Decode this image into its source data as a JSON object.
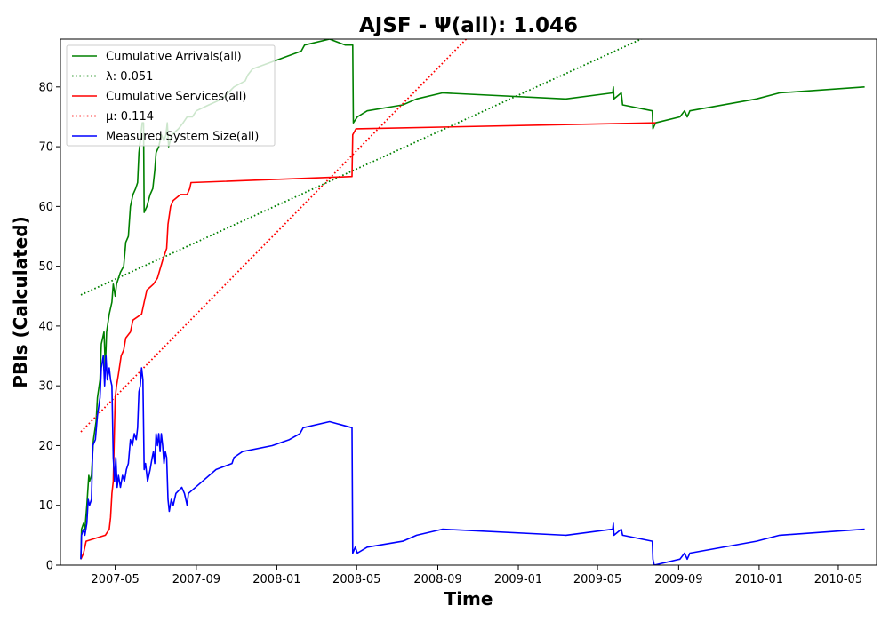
{
  "chart_data": {
    "type": "line",
    "title": "AJSF -  Ψ(all): 1.046",
    "xlabel": "Time",
    "ylabel": "PBIs (Calculated)",
    "x_axis_type": "date",
    "xlim": [
      "2007-02-07",
      "2010-06-28"
    ],
    "ylim": [
      0,
      88
    ],
    "x_ticks": [
      {
        "date": "2007-05-01",
        "label": "2007-05"
      },
      {
        "date": "2007-09-01",
        "label": "2007-09"
      },
      {
        "date": "2008-01-01",
        "label": "2008-01"
      },
      {
        "date": "2008-05-01",
        "label": "2008-05"
      },
      {
        "date": "2008-09-01",
        "label": "2008-09"
      },
      {
        "date": "2009-01-01",
        "label": "2009-01"
      },
      {
        "date": "2009-05-01",
        "label": "2009-05"
      },
      {
        "date": "2009-09-01",
        "label": "2009-09"
      },
      {
        "date": "2010-01-01",
        "label": "2010-01"
      },
      {
        "date": "2010-05-01",
        "label": "2010-05"
      }
    ],
    "y_ticks": [
      0,
      10,
      20,
      30,
      40,
      50,
      60,
      70,
      80
    ],
    "grid": false,
    "legend_position": "top-left",
    "series": [
      {
        "name": "Cumulative Arrivals(all)",
        "style": "solid",
        "color": "#008000",
        "points": [
          [
            "2007-03-10",
            1
          ],
          [
            "2007-03-11",
            6
          ],
          [
            "2007-03-14",
            7
          ],
          [
            "2007-03-16",
            6
          ],
          [
            "2007-03-19",
            10
          ],
          [
            "2007-03-22",
            15
          ],
          [
            "2007-03-23",
            14
          ],
          [
            "2007-03-26",
            15
          ],
          [
            "2007-03-29",
            21
          ],
          [
            "2007-04-02",
            24
          ],
          [
            "2007-04-04",
            28
          ],
          [
            "2007-04-08",
            31
          ],
          [
            "2007-04-10",
            37
          ],
          [
            "2007-04-14",
            39
          ],
          [
            "2007-04-16",
            33
          ],
          [
            "2007-04-18",
            39
          ],
          [
            "2007-04-22",
            42
          ],
          [
            "2007-04-26",
            44
          ],
          [
            "2007-04-28",
            47
          ],
          [
            "2007-05-01",
            45
          ],
          [
            "2007-05-03",
            47
          ],
          [
            "2007-05-06",
            48
          ],
          [
            "2007-05-09",
            49
          ],
          [
            "2007-05-14",
            50
          ],
          [
            "2007-05-17",
            54
          ],
          [
            "2007-05-21",
            55
          ],
          [
            "2007-05-24",
            60
          ],
          [
            "2007-05-28",
            62
          ],
          [
            "2007-06-01",
            63
          ],
          [
            "2007-06-04",
            64
          ],
          [
            "2007-06-06",
            69
          ],
          [
            "2007-06-08",
            71
          ],
          [
            "2007-06-11",
            74
          ],
          [
            "2007-06-13",
            74
          ],
          [
            "2007-06-14",
            59
          ],
          [
            "2007-06-18",
            60
          ],
          [
            "2007-06-23",
            62
          ],
          [
            "2007-06-27",
            63
          ],
          [
            "2007-06-30",
            66
          ],
          [
            "2007-07-02",
            69
          ],
          [
            "2007-07-06",
            70
          ],
          [
            "2007-07-10",
            72
          ],
          [
            "2007-07-14",
            71
          ],
          [
            "2007-07-17",
            72
          ],
          [
            "2007-07-19",
            74
          ],
          [
            "2007-07-21",
            70
          ],
          [
            "2007-07-26",
            72
          ],
          [
            "2007-08-05",
            73
          ],
          [
            "2007-08-12",
            74
          ],
          [
            "2007-08-18",
            75
          ],
          [
            "2007-08-26",
            75
          ],
          [
            "2007-09-01",
            76
          ],
          [
            "2007-09-20",
            77
          ],
          [
            "2007-10-10",
            78
          ],
          [
            "2007-10-28",
            80
          ],
          [
            "2007-11-14",
            81
          ],
          [
            "2007-11-18",
            82
          ],
          [
            "2007-11-25",
            83
          ],
          [
            "2007-12-20",
            84
          ],
          [
            "2008-02-07",
            86
          ],
          [
            "2008-02-12",
            87
          ],
          [
            "2008-03-21",
            88
          ],
          [
            "2008-04-14",
            87
          ],
          [
            "2008-04-25",
            87
          ],
          [
            "2008-04-26",
            74
          ],
          [
            "2008-05-02",
            75
          ],
          [
            "2008-05-17",
            76
          ],
          [
            "2008-07-10",
            77
          ],
          [
            "2008-07-31",
            78
          ],
          [
            "2008-09-08",
            79
          ],
          [
            "2009-03-14",
            78
          ],
          [
            "2009-05-24",
            79
          ],
          [
            "2009-05-25",
            80
          ],
          [
            "2009-05-26",
            78
          ],
          [
            "2009-06-06",
            79
          ],
          [
            "2009-06-08",
            77
          ],
          [
            "2009-07-23",
            76
          ],
          [
            "2009-07-24",
            73
          ],
          [
            "2009-07-28",
            74
          ],
          [
            "2009-09-03",
            75
          ],
          [
            "2009-09-10",
            76
          ],
          [
            "2009-09-14",
            75
          ],
          [
            "2009-09-18",
            76
          ],
          [
            "2009-12-28",
            78
          ],
          [
            "2010-02-01",
            79
          ],
          [
            "2010-06-10",
            80
          ]
        ]
      },
      {
        "name": "λ: 0.051",
        "style": "dotted",
        "color": "#008000",
        "points": [
          [
            "2007-03-10",
            45.2
          ],
          [
            "2009-07-10",
            88.2
          ]
        ]
      },
      {
        "name": "Cumulative Services(all)",
        "style": "solid",
        "color": "#ff0000",
        "points": [
          [
            "2007-03-10",
            1
          ],
          [
            "2007-03-14",
            2
          ],
          [
            "2007-03-18",
            4
          ],
          [
            "2007-04-16",
            5
          ],
          [
            "2007-04-22",
            6
          ],
          [
            "2007-04-24",
            8
          ],
          [
            "2007-04-26",
            12
          ],
          [
            "2007-04-28",
            14
          ],
          [
            "2007-05-01",
            28
          ],
          [
            "2007-05-03",
            30
          ],
          [
            "2007-05-06",
            32
          ],
          [
            "2007-05-10",
            35
          ],
          [
            "2007-05-14",
            36
          ],
          [
            "2007-05-17",
            38
          ],
          [
            "2007-05-24",
            39
          ],
          [
            "2007-05-28",
            41
          ],
          [
            "2007-06-10",
            42
          ],
          [
            "2007-06-14",
            44
          ],
          [
            "2007-06-18",
            46
          ],
          [
            "2007-06-28",
            47
          ],
          [
            "2007-07-04",
            48
          ],
          [
            "2007-07-12",
            51
          ],
          [
            "2007-07-18",
            53
          ],
          [
            "2007-07-20",
            57
          ],
          [
            "2007-07-24",
            60
          ],
          [
            "2007-07-28",
            61
          ],
          [
            "2007-08-08",
            62
          ],
          [
            "2007-08-18",
            62
          ],
          [
            "2007-08-22",
            63
          ],
          [
            "2007-08-24",
            64
          ],
          [
            "2008-04-24",
            65
          ],
          [
            "2008-04-25",
            72
          ],
          [
            "2008-04-30",
            73
          ],
          [
            "2009-07-28",
            74
          ]
        ]
      },
      {
        "name": "μ: 0.114",
        "style": "dotted",
        "color": "#ff0000",
        "points": [
          [
            "2007-03-10",
            22.3
          ],
          [
            "2008-10-14",
            88
          ]
        ]
      },
      {
        "name": "Measured System Size(all)",
        "style": "solid",
        "color": "#0000ff",
        "points": [
          [
            "2007-03-10",
            1
          ],
          [
            "2007-03-11",
            5
          ],
          [
            "2007-03-14",
            6
          ],
          [
            "2007-03-16",
            5
          ],
          [
            "2007-03-19",
            7
          ],
          [
            "2007-03-21",
            11
          ],
          [
            "2007-03-23",
            10
          ],
          [
            "2007-03-26",
            11
          ],
          [
            "2007-03-28",
            20
          ],
          [
            "2007-04-01",
            21
          ],
          [
            "2007-04-04",
            25
          ],
          [
            "2007-04-08",
            28
          ],
          [
            "2007-04-10",
            33
          ],
          [
            "2007-04-13",
            35
          ],
          [
            "2007-04-15",
            30
          ],
          [
            "2007-04-17",
            35
          ],
          [
            "2007-04-19",
            31
          ],
          [
            "2007-04-22",
            33
          ],
          [
            "2007-04-24",
            31
          ],
          [
            "2007-04-26",
            30
          ],
          [
            "2007-04-28",
            18
          ],
          [
            "2007-04-30",
            14
          ],
          [
            "2007-05-02",
            18
          ],
          [
            "2007-05-04",
            13
          ],
          [
            "2007-05-06",
            15
          ],
          [
            "2007-05-09",
            13
          ],
          [
            "2007-05-12",
            15
          ],
          [
            "2007-05-15",
            14
          ],
          [
            "2007-05-18",
            16
          ],
          [
            "2007-05-21",
            17
          ],
          [
            "2007-05-24",
            21
          ],
          [
            "2007-05-27",
            20
          ],
          [
            "2007-05-30",
            22
          ],
          [
            "2007-06-02",
            21
          ],
          [
            "2007-06-04",
            23
          ],
          [
            "2007-06-06",
            29
          ],
          [
            "2007-06-08",
            30
          ],
          [
            "2007-06-10",
            33
          ],
          [
            "2007-06-12",
            31
          ],
          [
            "2007-06-14",
            16
          ],
          [
            "2007-06-16",
            17
          ],
          [
            "2007-06-19",
            14
          ],
          [
            "2007-06-23",
            16
          ],
          [
            "2007-06-26",
            18
          ],
          [
            "2007-06-28",
            19
          ],
          [
            "2007-06-30",
            17
          ],
          [
            "2007-07-02",
            22
          ],
          [
            "2007-07-04",
            20
          ],
          [
            "2007-07-06",
            22
          ],
          [
            "2007-07-08",
            19
          ],
          [
            "2007-07-10",
            22
          ],
          [
            "2007-07-12",
            20
          ],
          [
            "2007-07-14",
            17
          ],
          [
            "2007-07-16",
            19
          ],
          [
            "2007-07-18",
            18
          ],
          [
            "2007-07-20",
            11
          ],
          [
            "2007-07-22",
            9
          ],
          [
            "2007-07-25",
            11
          ],
          [
            "2007-07-28",
            10
          ],
          [
            "2007-08-01",
            12
          ],
          [
            "2007-08-10",
            13
          ],
          [
            "2007-08-14",
            12
          ],
          [
            "2007-08-16",
            11
          ],
          [
            "2007-08-18",
            10
          ],
          [
            "2007-08-20",
            12
          ],
          [
            "2007-09-10",
            14
          ],
          [
            "2007-10-01",
            16
          ],
          [
            "2007-10-25",
            17
          ],
          [
            "2007-10-28",
            18
          ],
          [
            "2007-11-10",
            19
          ],
          [
            "2007-12-25",
            20
          ],
          [
            "2008-01-20",
            21
          ],
          [
            "2008-02-05",
            22
          ],
          [
            "2008-02-10",
            23
          ],
          [
            "2008-03-21",
            24
          ],
          [
            "2008-04-24",
            23
          ],
          [
            "2008-04-25",
            2
          ],
          [
            "2008-04-29",
            3
          ],
          [
            "2008-05-02",
            2
          ],
          [
            "2008-05-17",
            3
          ],
          [
            "2008-07-10",
            4
          ],
          [
            "2008-07-31",
            5
          ],
          [
            "2008-09-08",
            6
          ],
          [
            "2009-03-14",
            5
          ],
          [
            "2009-05-24",
            6
          ],
          [
            "2009-05-25",
            7
          ],
          [
            "2009-05-26",
            5
          ],
          [
            "2009-06-06",
            6
          ],
          [
            "2009-06-08",
            5
          ],
          [
            "2009-07-23",
            4
          ],
          [
            "2009-07-24",
            1
          ],
          [
            "2009-07-26",
            0
          ],
          [
            "2009-09-03",
            1
          ],
          [
            "2009-09-10",
            2
          ],
          [
            "2009-09-14",
            1
          ],
          [
            "2009-09-18",
            2
          ],
          [
            "2009-12-28",
            4
          ],
          [
            "2010-02-01",
            5
          ],
          [
            "2010-06-10",
            6
          ]
        ]
      }
    ]
  }
}
